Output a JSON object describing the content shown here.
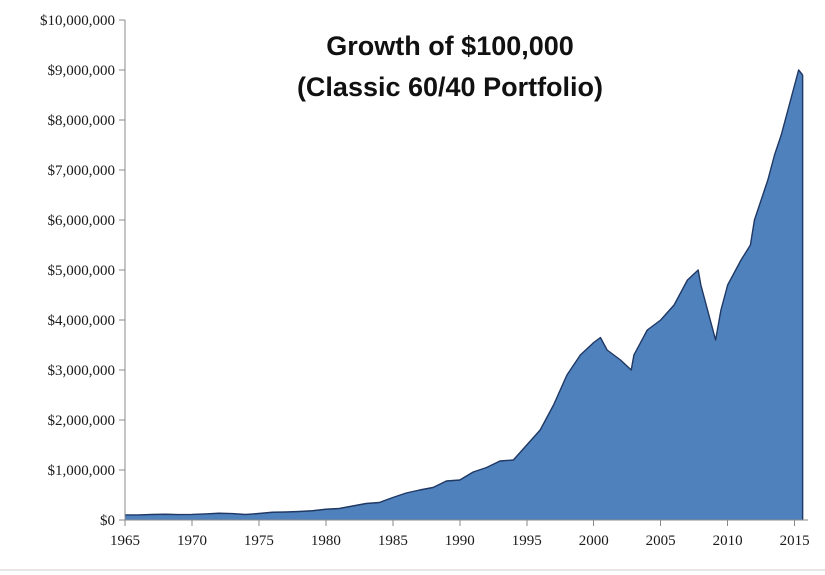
{
  "chart_data": {
    "type": "area",
    "title": "Growth of $100,000",
    "subtitle": "(Classic 60/40 Portfolio)",
    "xlabel": "",
    "ylabel": "",
    "xlim": [
      1965,
      2016
    ],
    "ylim": [
      0,
      10000000
    ],
    "x_ticks": [
      1965,
      1970,
      1975,
      1980,
      1985,
      1990,
      1995,
      2000,
      2005,
      2010,
      2015
    ],
    "x_tick_labels": [
      "1965",
      "1970",
      "1975",
      "1980",
      "1985",
      "1990",
      "1995",
      "2000",
      "2005",
      "2010",
      "2015"
    ],
    "y_ticks": [
      0,
      1000000,
      2000000,
      3000000,
      4000000,
      5000000,
      6000000,
      7000000,
      8000000,
      9000000,
      10000000
    ],
    "y_tick_labels": [
      "$0",
      "$1,000,000",
      "$2,000,000",
      "$3,000,000",
      "$4,000,000",
      "$5,000,000",
      "$6,000,000",
      "$7,000,000",
      "$8,000,000",
      "$9,000,000",
      "$10,000,000"
    ],
    "grid": false,
    "legend": "none",
    "fill_color": "#4f81bd",
    "line_color": "#1f3864",
    "series": [
      {
        "x": [
          1965,
          1966,
          1967,
          1968,
          1969,
          1970,
          1971,
          1972,
          1973,
          1974,
          1975,
          1976,
          1977,
          1978,
          1979,
          1980,
          1981,
          1982,
          1983,
          1984,
          1985,
          1986,
          1987,
          1988,
          1989,
          1990,
          1991,
          1992,
          1993,
          1994,
          1995,
          1996,
          1997,
          1998,
          1999,
          2000,
          2000.5,
          2001,
          2002,
          2002.8,
          2003,
          2004,
          2005,
          2006,
          2007,
          2007.8,
          2008,
          2008.5,
          2009.1,
          2009.5,
          2010,
          2011,
          2011.7,
          2012,
          2013,
          2013.5,
          2014,
          2014.5,
          2015,
          2015.3,
          2015.6
        ],
        "values": [
          100000,
          102000,
          110000,
          115000,
          108000,
          112000,
          122000,
          135000,
          128000,
          110000,
          130000,
          155000,
          160000,
          170000,
          185000,
          215000,
          230000,
          280000,
          330000,
          350000,
          450000,
          540000,
          600000,
          650000,
          780000,
          800000,
          960000,
          1050000,
          1180000,
          1200000,
          1500000,
          1800000,
          2300000,
          2900000,
          3300000,
          3550000,
          3650000,
          3400000,
          3200000,
          3000000,
          3300000,
          3800000,
          4000000,
          4300000,
          4800000,
          5000000,
          4700000,
          4200000,
          3600000,
          4200000,
          4700000,
          5200000,
          5500000,
          6000000,
          6800000,
          7300000,
          7700000,
          8200000,
          8700000,
          9000000,
          8900000
        ]
      }
    ]
  }
}
